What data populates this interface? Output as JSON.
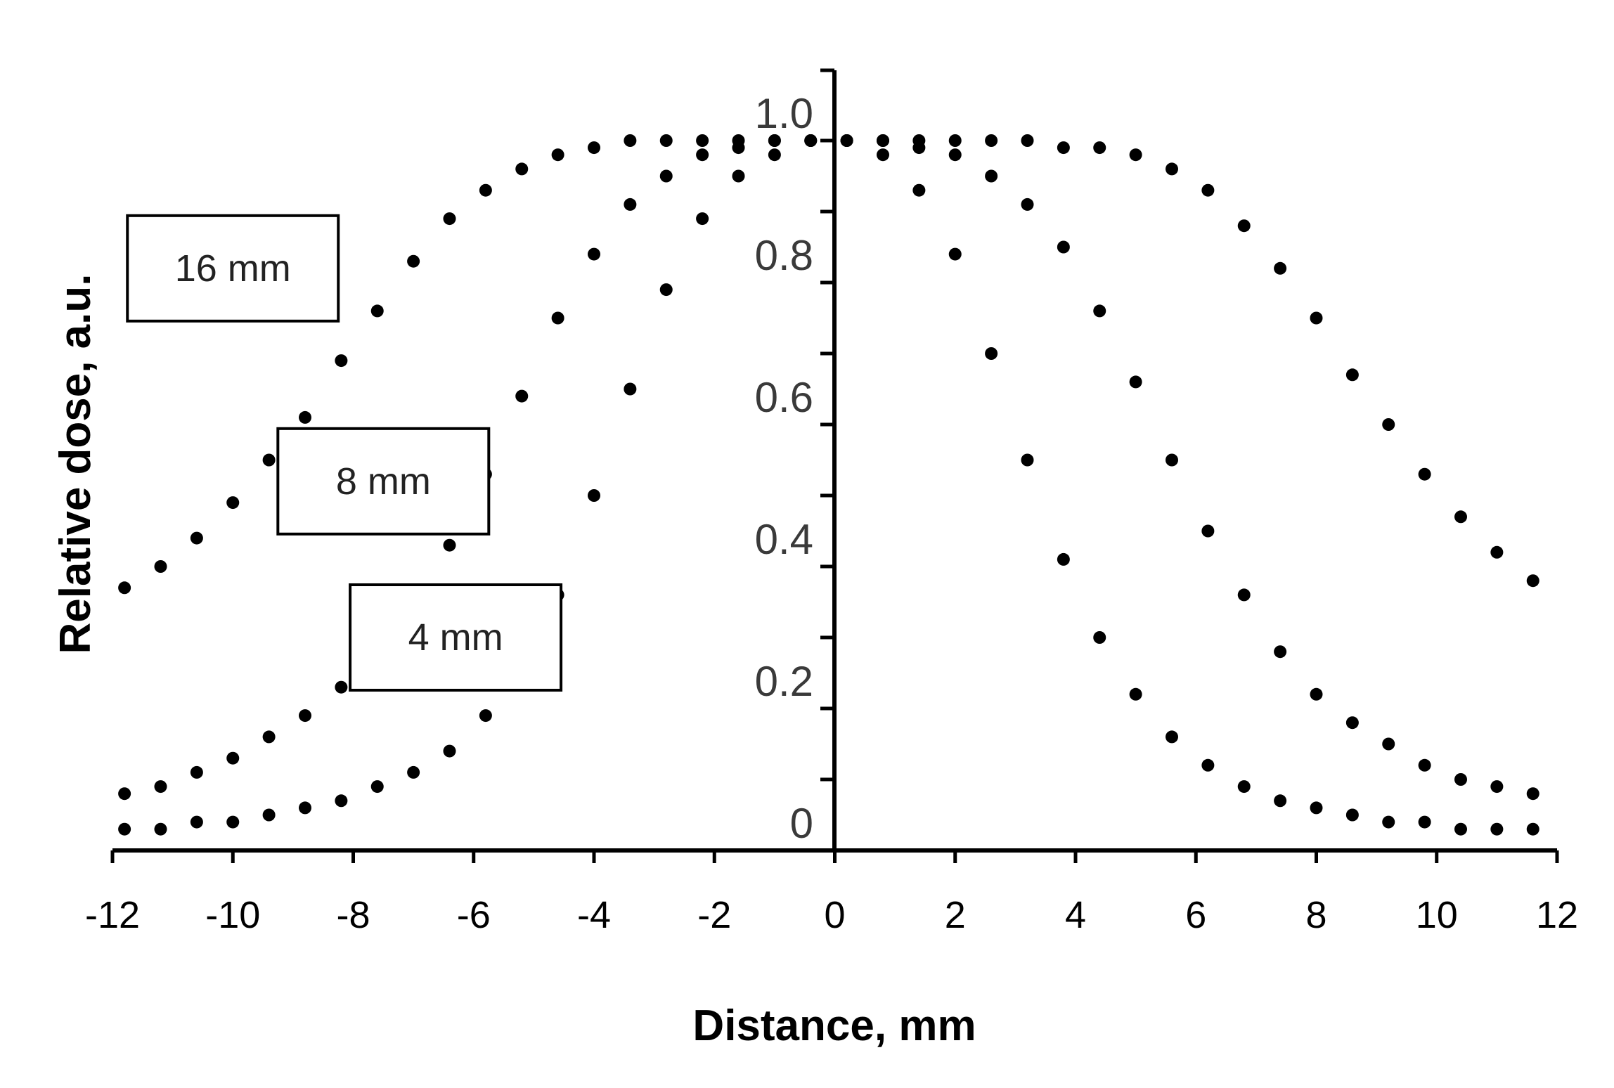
{
  "chart_data": {
    "type": "scatter",
    "title": "",
    "xlabel": "Distance, mm",
    "ylabel": "Relative dose, a.u.",
    "xlim": [
      -12,
      12
    ],
    "ylim": [
      0,
      1.0
    ],
    "x_ticks": [
      "-12",
      "-10",
      "-8",
      "-6",
      "-4",
      "-2",
      "0",
      "2",
      "4",
      "6",
      "8",
      "10",
      "12"
    ],
    "y_ticks": [
      "0",
      "0.2",
      "0.4",
      "0.6",
      "0.8",
      "1.0"
    ],
    "grid": false,
    "marker": "dotted",
    "series": [
      {
        "name": "16 mm",
        "x": [
          -11.8,
          -11.2,
          -10.6,
          -10.0,
          -9.4,
          -8.8,
          -8.2,
          -7.6,
          -7.0,
          -6.4,
          -5.8,
          -5.2,
          -4.6,
          -4.0,
          -3.4,
          -2.8,
          -2.2,
          -1.6,
          -1.0,
          -0.4,
          0.2,
          0.8,
          1.4,
          2.0,
          2.6,
          3.2,
          3.8,
          4.4,
          5.0,
          5.6,
          6.2,
          6.8,
          7.4,
          8.0,
          8.6,
          9.2,
          9.8,
          10.4,
          11.0,
          11.6
        ],
        "y": [
          0.37,
          0.4,
          0.44,
          0.49,
          0.55,
          0.61,
          0.69,
          0.76,
          0.83,
          0.89,
          0.93,
          0.96,
          0.98,
          0.99,
          1.0,
          1.0,
          1.0,
          1.0,
          1.0,
          1.0,
          1.0,
          1.0,
          1.0,
          1.0,
          1.0,
          1.0,
          0.99,
          0.99,
          0.98,
          0.96,
          0.93,
          0.88,
          0.82,
          0.75,
          0.67,
          0.6,
          0.53,
          0.47,
          0.42,
          0.38
        ]
      },
      {
        "name": "8 mm",
        "x": [
          -11.8,
          -11.2,
          -10.6,
          -10.0,
          -9.4,
          -8.8,
          -8.2,
          -7.6,
          -7.0,
          -6.4,
          -5.8,
          -5.2,
          -4.6,
          -4.0,
          -3.4,
          -2.8,
          -2.2,
          -1.6,
          -1.0,
          -0.4,
          0.2,
          0.8,
          1.4,
          2.0,
          2.6,
          3.2,
          3.8,
          4.4,
          5.0,
          5.6,
          6.2,
          6.8,
          7.4,
          8.0,
          8.6,
          9.2,
          9.8,
          10.4,
          11.0,
          11.6
        ],
        "y": [
          0.08,
          0.09,
          0.11,
          0.13,
          0.16,
          0.19,
          0.23,
          0.28,
          0.35,
          0.43,
          0.53,
          0.64,
          0.75,
          0.84,
          0.91,
          0.95,
          0.98,
          0.99,
          1.0,
          1.0,
          1.0,
          1.0,
          0.99,
          0.98,
          0.95,
          0.91,
          0.85,
          0.76,
          0.66,
          0.55,
          0.45,
          0.36,
          0.28,
          0.22,
          0.18,
          0.15,
          0.12,
          0.1,
          0.09,
          0.08
        ]
      },
      {
        "name": "4 mm",
        "x": [
          -11.8,
          -11.2,
          -10.6,
          -10.0,
          -9.4,
          -8.8,
          -8.2,
          -7.6,
          -7.0,
          -6.4,
          -5.8,
          -5.2,
          -4.6,
          -4.0,
          -3.4,
          -2.8,
          -2.2,
          -1.6,
          -1.0,
          -0.4,
          0.2,
          0.8,
          1.4,
          2.0,
          2.6,
          3.2,
          3.8,
          4.4,
          5.0,
          5.6,
          6.2,
          6.8,
          7.4,
          8.0,
          8.6,
          9.2,
          9.8,
          10.4,
          11.0,
          11.6
        ],
        "y": [
          0.03,
          0.03,
          0.04,
          0.04,
          0.05,
          0.06,
          0.07,
          0.09,
          0.11,
          0.14,
          0.19,
          0.26,
          0.36,
          0.5,
          0.65,
          0.79,
          0.89,
          0.95,
          0.98,
          1.0,
          1.0,
          0.98,
          0.93,
          0.84,
          0.7,
          0.55,
          0.41,
          0.3,
          0.22,
          0.16,
          0.12,
          0.09,
          0.07,
          0.06,
          0.05,
          0.04,
          0.04,
          0.03,
          0.03,
          0.03
        ]
      }
    ],
    "annotations": [
      {
        "text": "16 mm",
        "x": -10.0,
        "y": 0.82
      },
      {
        "text": "8 mm",
        "x": -7.5,
        "y": 0.52
      },
      {
        "text": "4 mm",
        "x": -6.3,
        "y": 0.3
      }
    ]
  }
}
